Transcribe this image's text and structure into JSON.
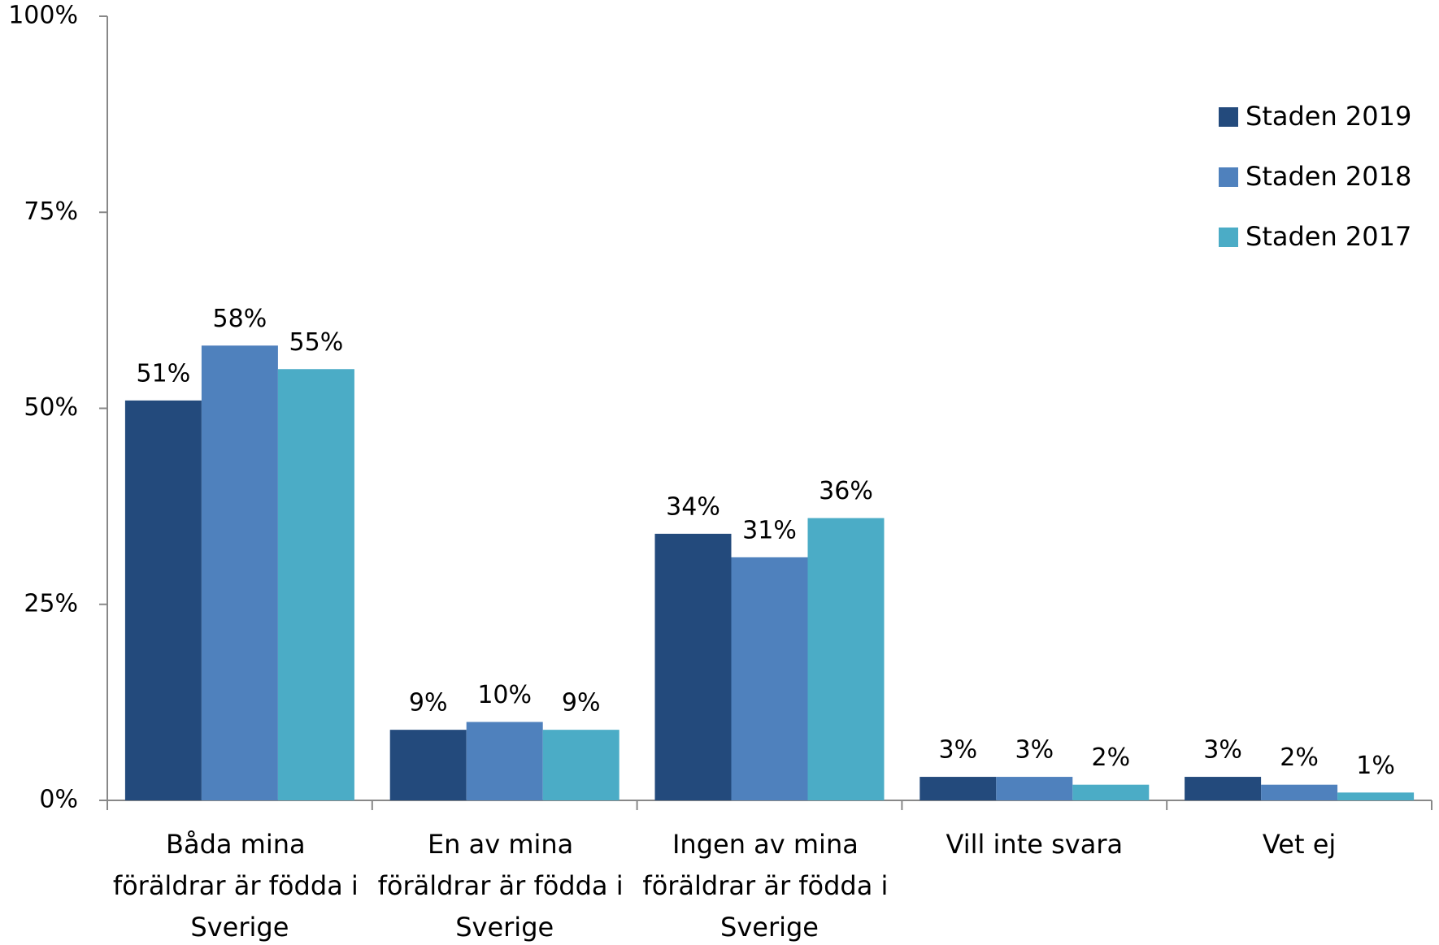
{
  "chart_data": {
    "type": "bar",
    "categories": [
      "Båda mina föräldrar är födda i Sverige",
      "En av mina föräldrar är födda i Sverige",
      "Ingen av mina föräldrar är födda i Sverige",
      "Vill inte svara",
      "Vet ej"
    ],
    "series": [
      {
        "name": "Staden 2019",
        "color": "#234a7c",
        "values": [
          51,
          9,
          34,
          3,
          3
        ],
        "value_labels": [
          "51%",
          "9%",
          "34%",
          "3%",
          "3%"
        ]
      },
      {
        "name": "Staden 2018",
        "color": "#4f81bd",
        "values": [
          58,
          10,
          31,
          3,
          2
        ],
        "value_labels": [
          "58%",
          "10%",
          "31%",
          "3%",
          "2%"
        ]
      },
      {
        "name": "Staden 2017",
        "color": "#4bacc6",
        "values": [
          55,
          9,
          36,
          2,
          1
        ],
        "value_labels": [
          "55%",
          "9%",
          "36%",
          "2%",
          "1%"
        ]
      }
    ],
    "ylim": [
      0,
      100
    ],
    "yticks": [
      {
        "value": 0,
        "label": "0%"
      },
      {
        "value": 25,
        "label": "25%"
      },
      {
        "value": 50,
        "label": "50%"
      },
      {
        "value": 75,
        "label": "75%"
      },
      {
        "value": 100,
        "label": "100%"
      }
    ],
    "legend": "right"
  }
}
